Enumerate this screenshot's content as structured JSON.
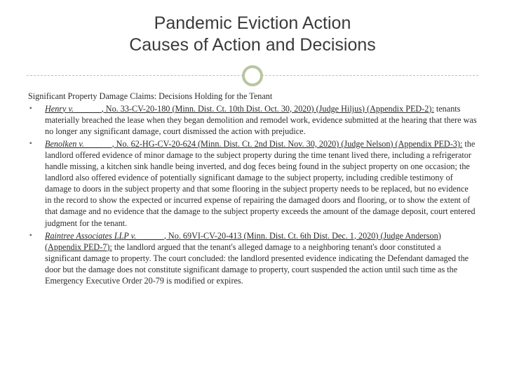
{
  "title": {
    "line1": "Pandemic Eviction Action",
    "line2": "Causes of Action and Decisions"
  },
  "heading": "Significant Property Damage Claims: Decisions Holding for the Tenant",
  "bullets": [
    {
      "cite_italic": "Henry v. ______",
      "cite_rest": ", No. 33-CV-20-180 (Minn. Dist. Ct. 10th Dist. Oct. 30, 2020) (Judge Hiljus) (Appendix PED-2):",
      "body": " tenants materially breached the lease when they began demolition and remodel work, evidence submitted at the hearing that there was no longer any significant damage, court dismissed the action with prejudice."
    },
    {
      "cite_italic": "Benolken v. ______",
      "cite_rest": ", No. 62-HG-CV-20-624 (Minn. Dist. Ct. 2nd Dist. Nov. 30, 2020) (Judge Nelson) (Appendix PED-3):",
      "body": " the landlord offered evidence of minor damage to the subject property during the time tenant lived there, including a refrigerator handle missing, a kitchen sink handle being inverted, and dog feces being found in the subject property on one occasion; the landlord also offered evidence of potentially significant damage to the subject property, including credible testimony of damage to doors in the subject property and that some flooring in the subject property needs to be replaced, but no evidence in the record to show the expected or incurred expense of repairing the damaged doors and flooring, or to show the extent of that damage and no evidence that the damage to the subject property exceeds the amount of the damage deposit, court entered judgment for the tenant."
    },
    {
      "cite_italic": "Raintree Associates LLP v. ______",
      "cite_rest": ", No. 69VI-CV-20-413 (Minn. Dist. Ct. 6th Dist. Dec. 1, 2020) (Judge Anderson) (Appendix PED-7):",
      "body": " the landlord argued that the tenant's alleged damage to a neighboring tenant's door constituted a significant damage to property. The court concluded: the landlord presented evidence indicating the Defendant damaged the door but the damage does not constitute significant damage to property, court suspended the action until such time as the Emergency Executive Order 20-79 is modified or expires."
    }
  ],
  "style": {
    "accent_color": "#b8c6a0",
    "title_color": "#3a3a3a",
    "text_color": "#2b2b2b",
    "bullet_color": "#6b6b6b",
    "title_fontsize": 25,
    "body_fontsize": 12.2,
    "slide_width": 720,
    "slide_height": 540
  }
}
